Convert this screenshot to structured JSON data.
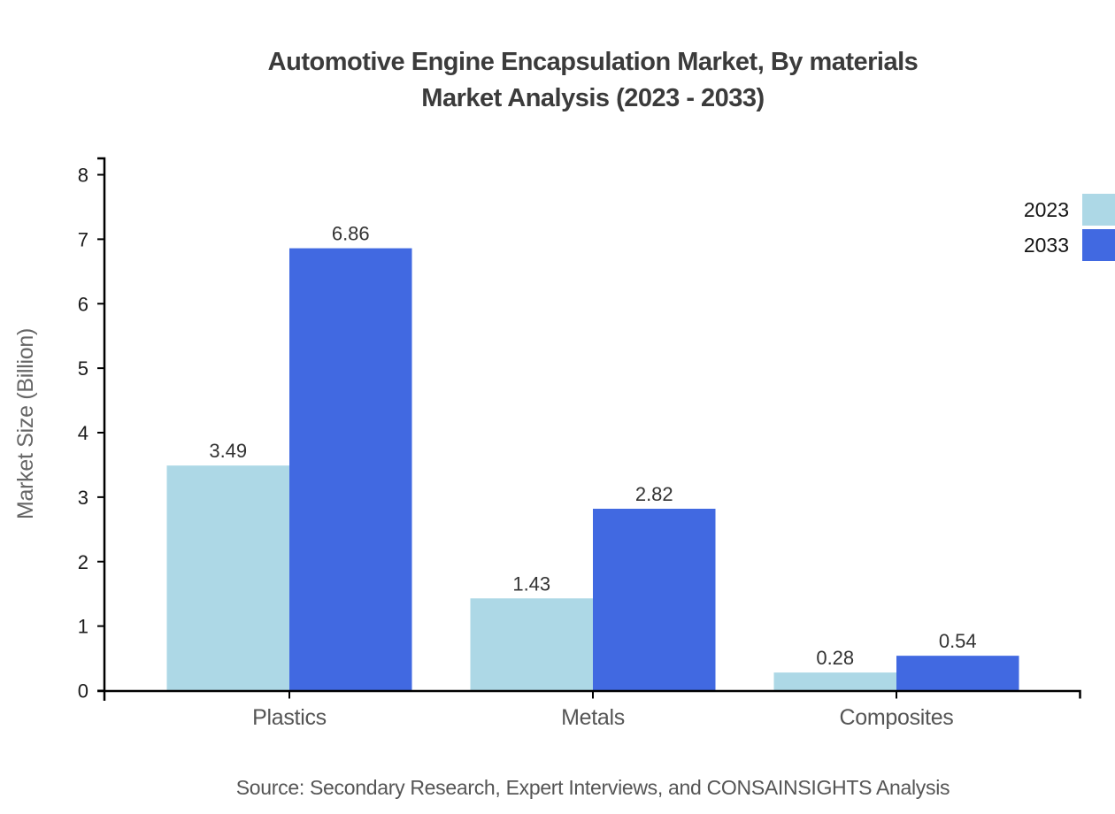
{
  "title": {
    "line1": "Automotive Engine Encapsulation Market, By materials",
    "line2": "Market Analysis (2023 - 2033)"
  },
  "source_note": "Source: Secondary Research, Expert Interviews, and CONSAINSIGHTS Analysis",
  "colors": {
    "background": "#ffffff",
    "axis": "#000000",
    "tick_label": "#1b1b1b",
    "value_label": "#333333",
    "category_label": "#555555",
    "axis_title": "#666666",
    "title_text": "#3b3b3b",
    "series_2023": "#ADD8E6",
    "series_2033": "#4169E1"
  },
  "chart_data": {
    "type": "bar",
    "categories": [
      "Plastics",
      "Metals",
      "Composites"
    ],
    "series": [
      {
        "name": "2023",
        "color": "#ADD8E6",
        "values": [
          3.49,
          1.43,
          0.28
        ]
      },
      {
        "name": "2033",
        "color": "#4169E1",
        "values": [
          6.86,
          2.82,
          0.54
        ]
      }
    ],
    "value_labels": [
      "3.49",
      "6.86",
      "1.43",
      "2.82",
      "0.28",
      "0.54"
    ],
    "title": "Automotive Engine Encapsulation Market, By materials Market Analysis (2023 - 2033)",
    "xlabel": "",
    "ylabel": "Market Size (Billion)",
    "ylim": [
      0,
      8
    ],
    "yticks": [
      0,
      1,
      2,
      3,
      4,
      5,
      6,
      7,
      8
    ],
    "grid": false,
    "legend_position": "top-right"
  }
}
